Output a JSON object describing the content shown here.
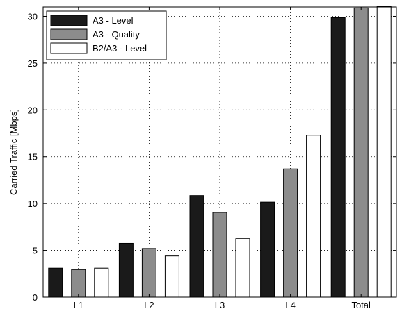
{
  "chart_data": {
    "type": "bar",
    "categories": [
      "L1",
      "L2",
      "L3",
      "L4",
      "Total"
    ],
    "series": [
      {
        "name": "A3 - Level",
        "color": "#1a1a1a",
        "values": [
          3.1,
          5.75,
          10.85,
          10.15,
          29.85
        ]
      },
      {
        "name": "A3 - Quality",
        "color": "#8c8c8c",
        "values": [
          2.95,
          5.2,
          9.05,
          13.7,
          30.9
        ]
      },
      {
        "name": "B2/A3 - Level",
        "color": "#ffffff",
        "values": [
          3.1,
          4.4,
          6.25,
          17.3,
          31.05
        ]
      }
    ],
    "title": "",
    "xlabel": "",
    "ylabel": "Carried Traffic [Mbps]",
    "ylim": [
      0,
      31
    ],
    "yticks": [
      0,
      5,
      10,
      15,
      20,
      25,
      30
    ],
    "grid": true,
    "legend_position": "top-left"
  }
}
